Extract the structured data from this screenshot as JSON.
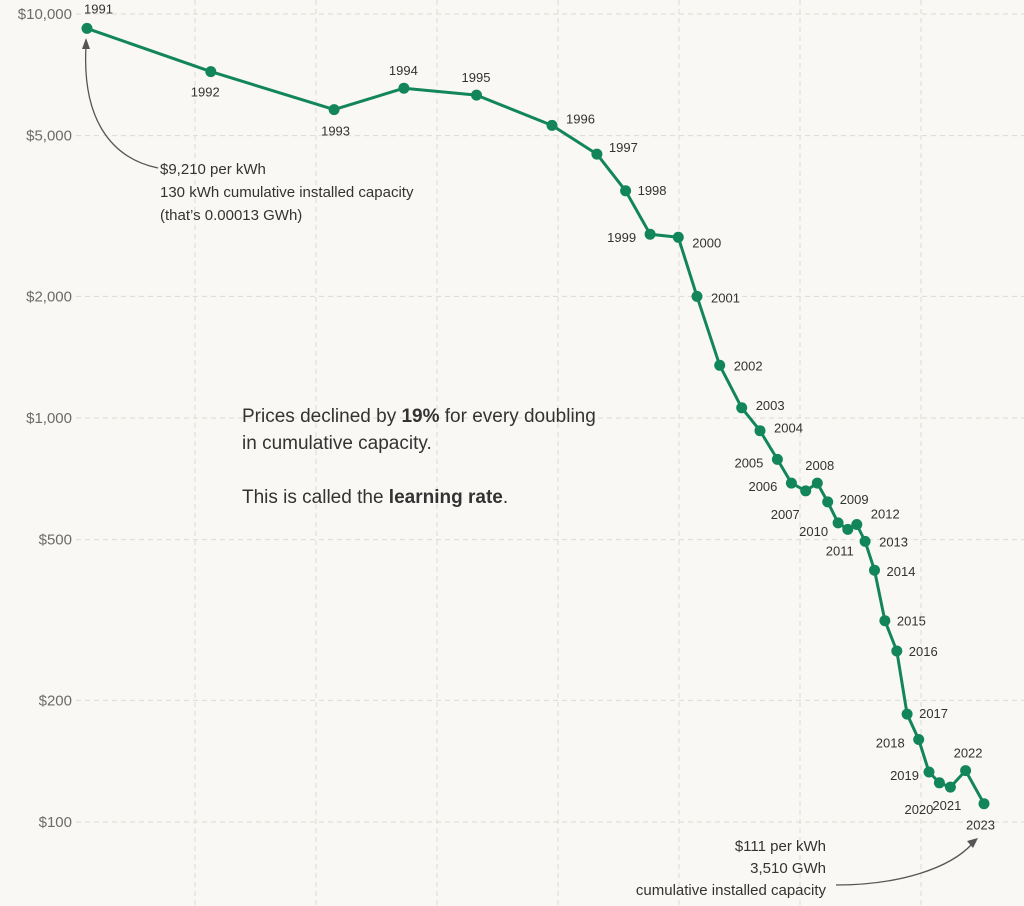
{
  "chart_data": {
    "type": "line",
    "title": "",
    "xlabel": "",
    "ylabel": "",
    "y_scale": "log",
    "ylim": [
      100,
      10000
    ],
    "grid": true,
    "y_ticks": [
      {
        "value": 10000,
        "label": "$10,000"
      },
      {
        "value": 5000,
        "label": "$5,000"
      },
      {
        "value": 2000,
        "label": "$2,000"
      },
      {
        "value": 1000,
        "label": "$1,000"
      },
      {
        "value": 500,
        "label": "$500"
      },
      {
        "value": 200,
        "label": "$200"
      },
      {
        "value": 100,
        "label": "$100"
      }
    ],
    "series": [
      {
        "color": "#12865a",
        "points": [
          {
            "label": "1991",
            "cum_capacity_gwh": 0.00013,
            "price": 9210
          },
          {
            "label": "1992",
            "cum_capacity_gwh": 0.00138,
            "price": 7200
          },
          {
            "label": "1993",
            "cum_capacity_gwh": 0.0145,
            "price": 5800
          },
          {
            "label": "1994",
            "cum_capacity_gwh": 0.0549,
            "price": 6550
          },
          {
            "label": "1995",
            "cum_capacity_gwh": 0.219,
            "price": 6300
          },
          {
            "label": "1996",
            "cum_capacity_gwh": 0.925,
            "price": 5300
          },
          {
            "label": "1997",
            "cum_capacity_gwh": 2.18,
            "price": 4500
          },
          {
            "label": "1998",
            "cum_capacity_gwh": 3.77,
            "price": 3650
          },
          {
            "label": "1999",
            "cum_capacity_gwh": 6.01,
            "price": 2850
          },
          {
            "label": "2000",
            "cum_capacity_gwh": 10.3,
            "price": 2800
          },
          {
            "label": "2001",
            "cum_capacity_gwh": 14.7,
            "price": 2000
          },
          {
            "label": "2002",
            "cum_capacity_gwh": 22.7,
            "price": 1350
          },
          {
            "label": "2003",
            "cum_capacity_gwh": 34.5,
            "price": 1060
          },
          {
            "label": "2004",
            "cum_capacity_gwh": 48.9,
            "price": 930
          },
          {
            "label": "2005",
            "cum_capacity_gwh": 68.2,
            "price": 790
          },
          {
            "label": "2006",
            "cum_capacity_gwh": 89.0,
            "price": 690
          },
          {
            "label": "2007",
            "cum_capacity_gwh": 117.0,
            "price": 660
          },
          {
            "label": "2008",
            "cum_capacity_gwh": 146.0,
            "price": 690
          },
          {
            "label": "2009",
            "cum_capacity_gwh": 178.0,
            "price": 620
          },
          {
            "label": "2010",
            "cum_capacity_gwh": 217.0,
            "price": 550
          },
          {
            "label": "2011",
            "cum_capacity_gwh": 261.0,
            "price": 530
          },
          {
            "label": "2012",
            "cum_capacity_gwh": 310.0,
            "price": 545
          },
          {
            "label": "2013",
            "cum_capacity_gwh": 363.0,
            "price": 495
          },
          {
            "label": "2014",
            "cum_capacity_gwh": 435.0,
            "price": 420
          },
          {
            "label": "2015",
            "cum_capacity_gwh": 530.0,
            "price": 315
          },
          {
            "label": "2016",
            "cum_capacity_gwh": 665.0,
            "price": 265
          },
          {
            "label": "2017",
            "cum_capacity_gwh": 810.0,
            "price": 185
          },
          {
            "label": "2018",
            "cum_capacity_gwh": 1010.0,
            "price": 160
          },
          {
            "label": "2019",
            "cum_capacity_gwh": 1230.0,
            "price": 133
          },
          {
            "label": "2020",
            "cum_capacity_gwh": 1500.0,
            "price": 125
          },
          {
            "label": "2021",
            "cum_capacity_gwh": 1850.0,
            "price": 122
          },
          {
            "label": "2022",
            "cum_capacity_gwh": 2470.0,
            "price": 134
          },
          {
            "label": "2023",
            "cum_capacity_gwh": 3510.0,
            "price": 111
          }
        ]
      }
    ],
    "annotations": {
      "start": [
        "$9,210 per kWh",
        "130 kWh cumulative installed capacity",
        "(that’s 0.00013 GWh)"
      ],
      "end": [
        "$111 per kWh",
        "3,510 GWh",
        "cumulative installed capacity"
      ],
      "body_line1_pre": "Prices declined by ",
      "body_line1_bold": "19%",
      "body_line1_post": " for every doubling",
      "body_line2": "in cumulative capacity.",
      "body_line3_pre": "This is called the ",
      "body_line3_bold": "learning rate",
      "body_line3_post": "."
    }
  }
}
